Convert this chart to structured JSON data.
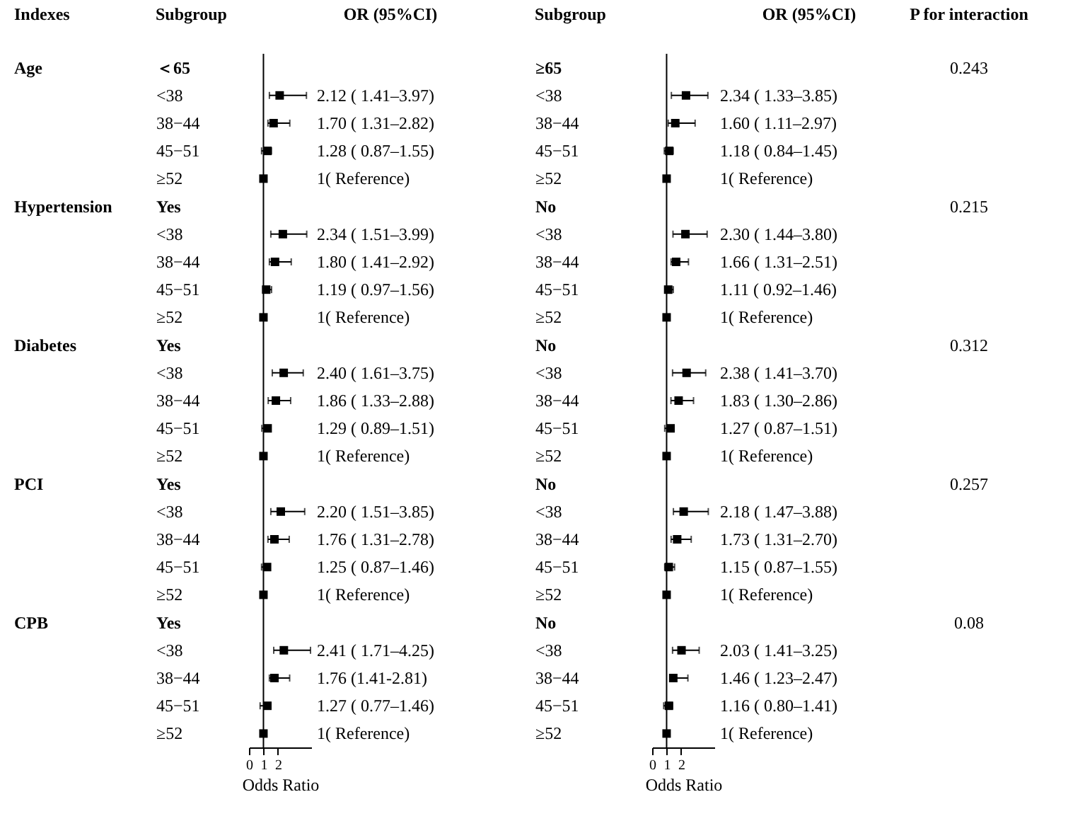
{
  "chart_data": [
    {
      "type": "scatter",
      "orientation": "horizontal",
      "ylabel": "Subgroup",
      "xlabel": "Odds Ratio",
      "color": "#000000",
      "marker": "square",
      "grid": false,
      "categories": [
        "＜65",
        "<38",
        "38−44",
        "45−51",
        "≥52",
        "Yes",
        "<38",
        "38−44",
        "45−51",
        "≥52",
        "Yes",
        "<38",
        "38−44",
        "45−51",
        "≥52",
        "Yes",
        "<38",
        "38−44",
        "45−51",
        "≥52",
        "Yes",
        "<38",
        "38−44",
        "45−51",
        "≥52"
      ],
      "values": [
        null,
        2.12,
        1.7,
        1.28,
        1,
        null,
        2.34,
        1.8,
        1.19,
        1,
        null,
        2.4,
        1.86,
        1.29,
        1,
        null,
        2.2,
        1.76,
        1.25,
        1,
        null,
        2.41,
        1.76,
        1.27,
        1
      ],
      "errors": [
        null,
        [
          1.41,
          3.97
        ],
        [
          1.31,
          2.82
        ],
        [
          0.87,
          1.55
        ],
        null,
        null,
        [
          1.51,
          3.99
        ],
        [
          1.41,
          2.92
        ],
        [
          0.97,
          1.56
        ],
        null,
        null,
        [
          1.61,
          3.75
        ],
        [
          1.33,
          2.88
        ],
        [
          0.89,
          1.51
        ],
        null,
        null,
        [
          1.51,
          3.85
        ],
        [
          1.31,
          2.78
        ],
        [
          0.87,
          1.46
        ],
        null,
        null,
        [
          1.71,
          4.25
        ],
        [
          1.41,
          2.81
        ],
        [
          0.77,
          1.46
        ],
        null
      ],
      "value_labels": [
        null,
        "2.12 ( 1.41–3.97)",
        "1.70 ( 1.31–2.82)",
        "1.28 ( 0.87–1.55)",
        "1( Reference)",
        null,
        "2.34 ( 1.51–3.99)",
        "1.80 ( 1.41–2.92)",
        "1.19 ( 0.97–1.56)",
        "1( Reference)",
        null,
        "2.40 ( 1.61–3.75)",
        "1.86 ( 1.33–2.88)",
        "1.29 ( 0.89–1.51)",
        "1( Reference)",
        null,
        "2.20 ( 1.51–3.85)",
        "1.76 ( 1.31–2.78)",
        "1.25 ( 0.87–1.46)",
        "1( Reference)",
        null,
        "2.41 ( 1.71–4.25)",
        "1.76 (1.41-2.81)",
        "1.27 ( 0.77–1.46)",
        "1( Reference)"
      ],
      "xlim": [
        0,
        4.3
      ],
      "xticks": [
        0,
        1,
        2
      ],
      "ref_lines": [
        {
          "axis": "x",
          "value": 1
        }
      ],
      "annotations": [
        "Indexes",
        "OR (95%CI)",
        "Age",
        "Hypertension",
        "Diabetes",
        "PCI",
        "CPB"
      ]
    },
    {
      "type": "scatter",
      "orientation": "horizontal",
      "ylabel": "Subgroup",
      "xlabel": "Odds Ratio",
      "color": "#000000",
      "marker": "square",
      "grid": false,
      "categories": [
        "≥65",
        "<38",
        "38−44",
        "45−51",
        "≥52",
        "No",
        "<38",
        "38−44",
        "45−51",
        "≥52",
        "No",
        "<38",
        "38−44",
        "45−51",
        "≥52",
        "No",
        "<38",
        "38−44",
        "45−51",
        "≥52",
        "No",
        "<38",
        "38−44",
        "45−51",
        "≥52"
      ],
      "values": [
        null,
        2.34,
        1.6,
        1.18,
        1,
        null,
        2.3,
        1.66,
        1.11,
        1,
        null,
        2.38,
        1.83,
        1.27,
        1,
        null,
        2.18,
        1.73,
        1.15,
        1,
        null,
        2.03,
        1.46,
        1.16,
        1
      ],
      "errors": [
        null,
        [
          1.33,
          3.85
        ],
        [
          1.11,
          2.97
        ],
        [
          0.84,
          1.45
        ],
        null,
        null,
        [
          1.44,
          3.8
        ],
        [
          1.31,
          2.51
        ],
        [
          0.92,
          1.46
        ],
        null,
        null,
        [
          1.41,
          3.7
        ],
        [
          1.3,
          2.86
        ],
        [
          0.87,
          1.51
        ],
        null,
        null,
        [
          1.47,
          3.88
        ],
        [
          1.31,
          2.7
        ],
        [
          0.87,
          1.55
        ],
        null,
        null,
        [
          1.41,
          3.25
        ],
        [
          1.23,
          2.47
        ],
        [
          0.8,
          1.41
        ],
        null
      ],
      "value_labels": [
        null,
        "2.34 ( 1.33–3.85)",
        "1.60 ( 1.11–2.97)",
        "1.18 ( 0.84–1.45)",
        "1( Reference)",
        null,
        "2.30 ( 1.44–3.80)",
        "1.66 ( 1.31–2.51)",
        "1.11 ( 0.92–1.46)",
        "1( Reference)",
        null,
        "2.38 ( 1.41–3.70)",
        "1.83 ( 1.30–2.86)",
        "1.27 ( 0.87–1.51)",
        "1( Reference)",
        null,
        "2.18 ( 1.47–3.88)",
        "1.73 ( 1.31–2.70)",
        "1.15 ( 0.87–1.55)",
        "1( Reference)",
        null,
        "2.03 ( 1.41–3.25)",
        "1.46 ( 1.23–2.47)",
        "1.16 ( 0.80–1.41)",
        "1( Reference)"
      ],
      "xlim": [
        0,
        4.3
      ],
      "xticks": [
        0,
        1,
        2
      ],
      "ref_lines": [
        {
          "axis": "x",
          "value": 1
        }
      ],
      "annotations": [
        "OR (95%CI)",
        "P for interaction",
        "0.243",
        "0.215",
        "0.312",
        "0.257",
        "0.08"
      ]
    }
  ]
}
